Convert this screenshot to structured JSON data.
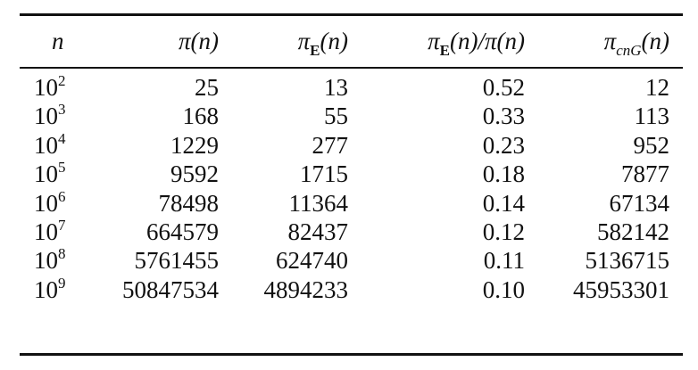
{
  "table": {
    "header": [
      {
        "main": "n"
      },
      {
        "main": "π",
        "rest": "(n)"
      },
      {
        "main": "π",
        "sub": "E",
        "rest": "(n)"
      },
      {
        "main": "π",
        "sub": "E",
        "rest": "(n)/π(n)"
      },
      {
        "main": "π",
        "sub": "cnG",
        "rest": "(n)"
      }
    ],
    "rows": [
      [
        {
          "base": "10",
          "exp": "2"
        },
        "25",
        "13",
        "0.52",
        "12"
      ],
      [
        {
          "base": "10",
          "exp": "3"
        },
        "168",
        "55",
        "0.33",
        "113"
      ],
      [
        {
          "base": "10",
          "exp": "4"
        },
        "1229",
        "277",
        "0.23",
        "952"
      ],
      [
        {
          "base": "10",
          "exp": "5"
        },
        "9592",
        "1715",
        "0.18",
        "7877"
      ],
      [
        {
          "base": "10",
          "exp": "6"
        },
        "78498",
        "11364",
        "0.14",
        "67134"
      ],
      [
        {
          "base": "10",
          "exp": "7"
        },
        "664579",
        "82437",
        "0.12",
        "582142"
      ],
      [
        {
          "base": "10",
          "exp": "8"
        },
        "5761455",
        "624740",
        "0.11",
        "5136715"
      ],
      [
        {
          "base": "10",
          "exp": "9"
        },
        "50847534",
        "4894233",
        "0.10",
        "45953301"
      ]
    ]
  }
}
